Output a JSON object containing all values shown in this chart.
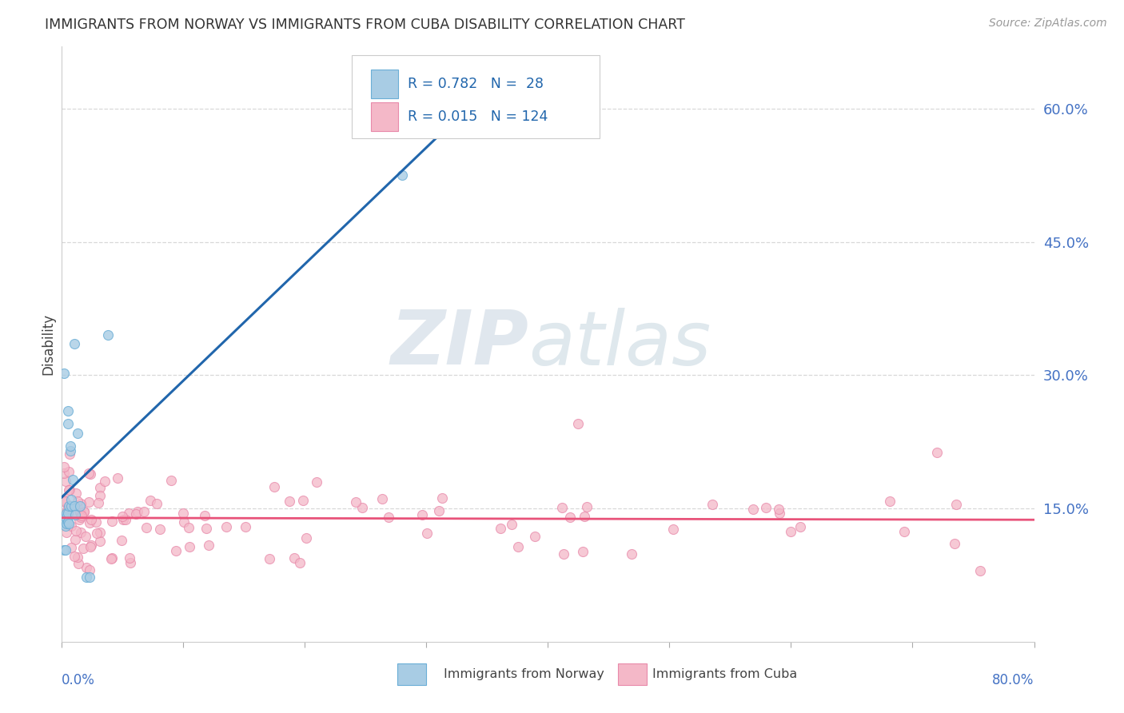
{
  "title": "IMMIGRANTS FROM NORWAY VS IMMIGRANTS FROM CUBA DISABILITY CORRELATION CHART",
  "source": "Source: ZipAtlas.com",
  "ylabel": "Disability",
  "xlim": [
    0.0,
    0.8
  ],
  "ylim": [
    0.0,
    0.67
  ],
  "yticks_right": [
    0.15,
    0.3,
    0.45,
    0.6
  ],
  "ytick_labels_right": [
    "15.0%",
    "30.0%",
    "45.0%",
    "60.0%"
  ],
  "norway_face": "#a8cce4",
  "norway_edge": "#6aaed6",
  "cuba_face": "#f4b8c8",
  "cuba_edge": "#e88aaa",
  "norway_line_color": "#2166ac",
  "cuba_line_color": "#e8537a",
  "norway_R": 0.782,
  "norway_N": 28,
  "cuba_R": 0.015,
  "cuba_N": 124,
  "legend_color": "#2166ac",
  "background_color": "#ffffff",
  "grid_color": "#d8d8d8",
  "watermark_zip": "ZIP",
  "watermark_atlas": "atlas",
  "watermark_color": "#c8d8e8",
  "right_tick_color": "#4472c4"
}
